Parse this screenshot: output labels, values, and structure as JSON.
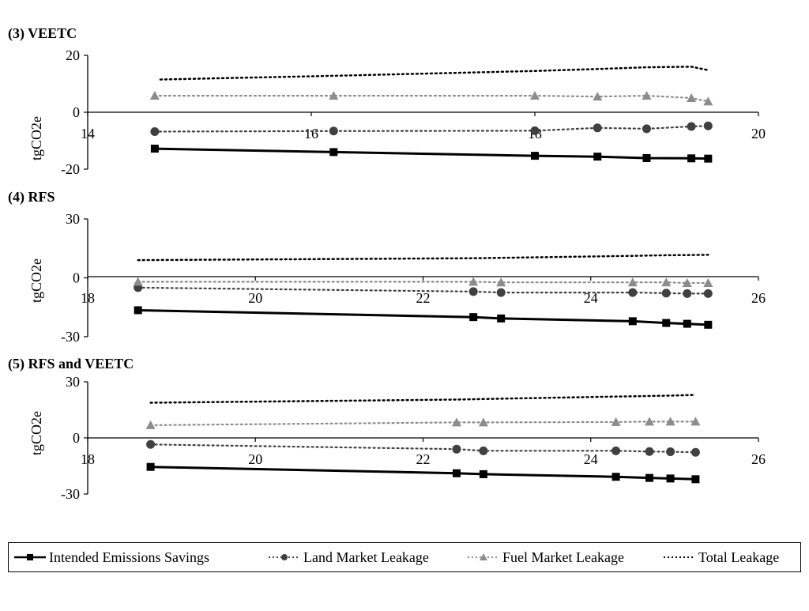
{
  "chart_data": [
    {
      "type": "line",
      "title": "(3) VEETC",
      "xlabel": "",
      "ylabel": "tgCO2e",
      "xlim": [
        14,
        20
      ],
      "ylim": [
        -20,
        20
      ],
      "xticks": [
        "14",
        "16",
        "18",
        "20"
      ],
      "yticks": [
        "20",
        "0",
        "-20"
      ],
      "series": [
        {
          "name": "Intended Emissions Savings",
          "x": [
            14.6,
            16.2,
            18.0,
            18.56,
            19.0,
            19.4,
            19.55
          ],
          "y": [
            -12.8,
            -14.0,
            -15.3,
            -15.6,
            -16.1,
            -16.2,
            -16.3
          ]
        },
        {
          "name": "Land Market Leakage",
          "x": [
            14.6,
            16.2,
            18.0,
            18.56,
            19.0,
            19.4,
            19.55
          ],
          "y": [
            -6.8,
            -6.6,
            -6.5,
            -5.5,
            -5.8,
            -5.0,
            -4.8
          ]
        },
        {
          "name": "Fuel Market Leakage",
          "x": [
            14.6,
            16.2,
            18.0,
            18.56,
            19.0,
            19.4,
            19.55
          ],
          "y": [
            5.8,
            5.8,
            5.8,
            5.5,
            5.8,
            5.0,
            3.8
          ]
        },
        {
          "name": "Total Leakage",
          "x": [
            14.65,
            16.2,
            18.0,
            18.56,
            19.0,
            19.4,
            19.55
          ],
          "y": [
            11.5,
            12.8,
            14.5,
            15.2,
            15.8,
            16.0,
            14.8
          ]
        }
      ]
    },
    {
      "type": "line",
      "title": "(4) RFS",
      "xlabel": "",
      "ylabel": "tgCO2e",
      "xlim": [
        18,
        26
      ],
      "ylim": [
        -30,
        30
      ],
      "xticks": [
        "18",
        "20",
        "22",
        "24",
        "26"
      ],
      "yticks": [
        "30",
        "0",
        "-30"
      ],
      "series": [
        {
          "name": "Intended Emissions Savings",
          "x": [
            18.6,
            22.6,
            22.93,
            24.5,
            24.9,
            25.15,
            25.4
          ],
          "y": [
            -16.5,
            -20.0,
            -20.7,
            -22.1,
            -23.0,
            -23.4,
            -23.9
          ]
        },
        {
          "name": "Land Market Leakage",
          "x": [
            18.6,
            22.6,
            22.93,
            24.5,
            24.9,
            25.15,
            25.4
          ],
          "y": [
            -5.0,
            -7.0,
            -7.5,
            -7.5,
            -7.8,
            -8.0,
            -8.0
          ]
        },
        {
          "name": "Fuel Market Leakage",
          "x": [
            18.6,
            22.6,
            22.93,
            24.5,
            24.9,
            25.15,
            25.4
          ],
          "y": [
            -2.0,
            -2.0,
            -2.3,
            -2.3,
            -2.3,
            -2.6,
            -2.6
          ]
        },
        {
          "name": "Total Leakage",
          "x": [
            18.6,
            22.6,
            22.93,
            24.5,
            24.9,
            25.15,
            25.4
          ],
          "y": [
            9.0,
            10.0,
            10.2,
            11.2,
            11.5,
            11.6,
            11.7
          ]
        }
      ]
    },
    {
      "type": "line",
      "title": "(5) RFS and VEETC",
      "xlabel": "",
      "ylabel": "tgCO2e",
      "xlim": [
        18,
        26
      ],
      "ylim": [
        -30,
        30
      ],
      "xticks": [
        "18",
        "20",
        "22",
        "24",
        "26"
      ],
      "yticks": [
        "30",
        "0",
        "-30"
      ],
      "series": [
        {
          "name": "Intended Emissions Savings",
          "x": [
            18.75,
            22.4,
            22.72,
            24.3,
            24.7,
            24.95,
            25.25
          ],
          "y": [
            -15.5,
            -18.9,
            -19.4,
            -20.8,
            -21.4,
            -21.7,
            -22.1
          ]
        },
        {
          "name": "Land Market Leakage",
          "x": [
            18.75,
            22.4,
            22.72,
            24.3,
            24.7,
            24.95,
            25.25
          ],
          "y": [
            -3.5,
            -6.0,
            -6.9,
            -6.9,
            -7.3,
            -7.4,
            -7.7
          ]
        },
        {
          "name": "Fuel Market Leakage",
          "x": [
            18.75,
            22.4,
            22.72,
            24.3,
            24.7,
            24.95,
            25.25
          ],
          "y": [
            6.8,
            8.3,
            8.3,
            8.5,
            8.7,
            8.7,
            8.7
          ]
        },
        {
          "name": "Total Leakage",
          "x": [
            18.75,
            22.4,
            22.72,
            24.3,
            24.7,
            24.95,
            25.25
          ],
          "y": [
            18.8,
            20.5,
            20.8,
            22.1,
            22.4,
            22.6,
            23.0
          ]
        }
      ]
    }
  ],
  "legend": {
    "placement": "bottom",
    "entries": [
      {
        "label": "Intended Emissions Savings",
        "color": "#000000",
        "line": "solid",
        "marker": "square"
      },
      {
        "label": "Land Market Leakage",
        "color": "#404040",
        "line": "dotted",
        "marker": "circle"
      },
      {
        "label": "Fuel Market Leakage",
        "color": "#8c8c8c",
        "line": "dotted",
        "marker": "triangle"
      },
      {
        "label": "Total Leakage",
        "color": "#000000",
        "line": "dotted",
        "marker": "none"
      }
    ]
  }
}
